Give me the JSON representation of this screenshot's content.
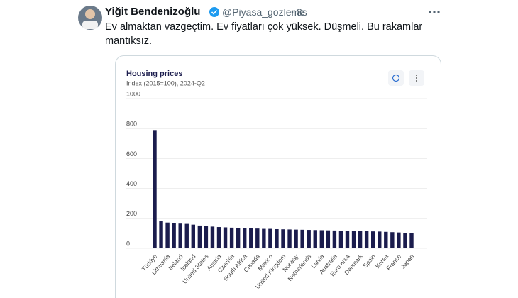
{
  "tweet": {
    "author": "Yiğit Bendenizoğlu",
    "handle": "@Piyasa_gozleme",
    "time": "8s",
    "text": "Ev almaktan vazgeçtim. Ev fiyatları çok yüksek. Düşmeli. Bu rakamlar mantıksız."
  },
  "chart_data": {
    "type": "bar",
    "title": "Housing prices",
    "subtitle": "Index (2015=100), 2024-Q2",
    "categories": [
      "Türkiye",
      null,
      "Lithuania",
      null,
      "Ireland",
      null,
      "Iceland",
      null,
      "United States",
      null,
      "Austria",
      null,
      "Czechia",
      null,
      "South Africa",
      null,
      "Canada",
      null,
      "Mexico",
      null,
      "United Kingdom",
      null,
      "Norway",
      null,
      "Netherlands",
      null,
      "Latvia",
      null,
      "Australia",
      null,
      "Euro area",
      null,
      "Denmark",
      null,
      "Spain",
      null,
      "Korea",
      null,
      "France",
      null,
      "Japan"
    ],
    "values": [
      790,
      180,
      172,
      168,
      165,
      163,
      158,
      152,
      148,
      145,
      142,
      140,
      138,
      137,
      135,
      133,
      132,
      130,
      130,
      128,
      127,
      126,
      125,
      124,
      123,
      122,
      121,
      120,
      119,
      118,
      117,
      116,
      115,
      114,
      113,
      112,
      110,
      108,
      106,
      104,
      100
    ],
    "color": "#1b1c4d",
    "ylim": [
      0,
      1000
    ],
    "yticks": [
      0,
      200,
      400,
      600,
      800,
      1000
    ],
    "grid": true
  }
}
